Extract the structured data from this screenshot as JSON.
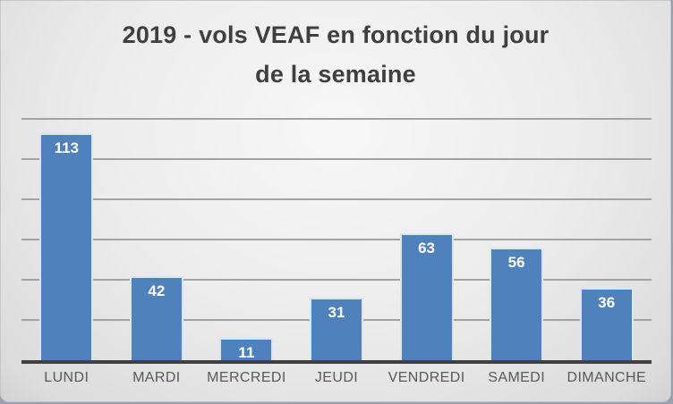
{
  "chart_data": {
    "type": "bar",
    "title": "2019 - vols VEAF en fonction du jour de la semaine",
    "title_lines": [
      "2019 - vols VEAF en fonction du jour",
      "de la semaine"
    ],
    "categories": [
      "LUNDI",
      "MARDI",
      "MERCREDI",
      "JEUDI",
      "VENDREDI",
      "SAMEDI",
      "DIMANCHE"
    ],
    "values": [
      113,
      42,
      11,
      31,
      63,
      56,
      36
    ],
    "xlabel": "",
    "ylabel": "",
    "ylim": [
      0,
      120
    ],
    "gridline_step": 20,
    "grid": "horizontal",
    "legend_position": "none",
    "data_labels": "inside-end",
    "colors": {
      "bar_fill": "#4f81bd",
      "bar_border": "#dbe5f1",
      "data_label": "#ffffff",
      "gridline": "#a2a2a2",
      "axis_line": "#404040",
      "title": "#3f3f3f",
      "axis_label": "#595959",
      "background_light": "#f7f7f7",
      "background_dark": "#d2d2d3"
    }
  }
}
